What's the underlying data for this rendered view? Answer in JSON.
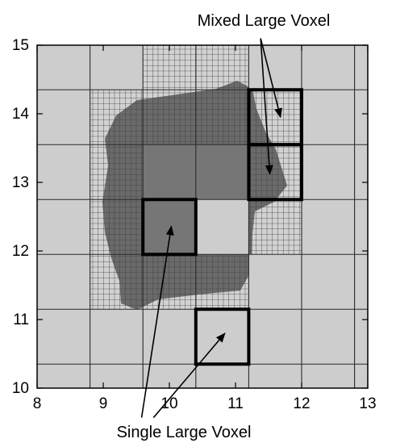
{
  "annotations": {
    "mixed_large_voxel": "Mixed Large Voxel",
    "single_large_voxel": "Single Large Voxel"
  },
  "axes": {
    "x": {
      "min": 8,
      "max": 13,
      "ticks": [
        "8",
        "9",
        "10",
        "11",
        "12",
        "13"
      ]
    },
    "y": {
      "min": 10,
      "max": 15,
      "ticks": [
        "10",
        "11",
        "12",
        "13",
        "14",
        "15"
      ]
    }
  },
  "grid": {
    "coarse_x": [
      8,
      8.8,
      9.6,
      10.4,
      11.2,
      12,
      12.8,
      13
    ],
    "coarse_y": [
      10,
      10.35,
      11.15,
      11.95,
      12.75,
      13.55,
      14.35,
      15
    ],
    "fine_spacing": 0.1
  },
  "colors": {
    "background_voxel": "#cdcdcd",
    "interior_large_voxel": "#767676",
    "interior_fine": "#626262",
    "grid_line": "#2a2a2a",
    "highlight_box": "#000000"
  },
  "fine_regions": [
    {
      "name": "upper-band",
      "x": [
        9.6,
        11.2
      ],
      "y": [
        13.55,
        15
      ]
    },
    {
      "name": "left-band",
      "x": [
        8.8,
        9.6
      ],
      "y": [
        11.15,
        14.35
      ]
    },
    {
      "name": "lower-band",
      "x": [
        9.6,
        11.2
      ],
      "y": [
        11.15,
        11.95
      ]
    },
    {
      "name": "right-band",
      "x": [
        11.2,
        12
      ],
      "y": [
        11.95,
        14.35
      ]
    }
  ],
  "interior_uniform_voxels": [
    {
      "x": [
        9.6,
        10.4
      ],
      "y": [
        12.75,
        13.55
      ]
    },
    {
      "x": [
        10.4,
        11.2
      ],
      "y": [
        12.75,
        13.55
      ]
    },
    {
      "x": [
        9.6,
        10.4
      ],
      "y": [
        11.95,
        12.75
      ]
    }
  ],
  "highlight_boxes": [
    {
      "name": "mixed-voxel-upper",
      "x": [
        11.2,
        12
      ],
      "y": [
        13.55,
        14.35
      ]
    },
    {
      "name": "mixed-voxel-lower",
      "x": [
        11.2,
        12
      ],
      "y": [
        12.75,
        13.55
      ]
    },
    {
      "name": "single-voxel-interior",
      "x": [
        9.6,
        10.4
      ],
      "y": [
        11.95,
        12.75
      ]
    },
    {
      "name": "single-voxel-exterior",
      "x": [
        10.4,
        11.2
      ],
      "y": [
        10.35,
        11.15
      ]
    }
  ],
  "arrows": [
    {
      "name": "arrow-mixed-upper",
      "from": [
        11.38,
        15.1
      ],
      "to": [
        11.68,
        13.95
      ]
    },
    {
      "name": "arrow-mixed-lower",
      "from": [
        11.38,
        15.1
      ],
      "to": [
        11.52,
        13.12
      ]
    },
    {
      "name": "arrow-single-interior",
      "from": [
        9.58,
        9.57
      ],
      "to": [
        10.03,
        12.36
      ]
    },
    {
      "name": "arrow-single-exterior",
      "from": [
        9.76,
        9.57
      ],
      "to": [
        10.84,
        10.8
      ]
    }
  ]
}
